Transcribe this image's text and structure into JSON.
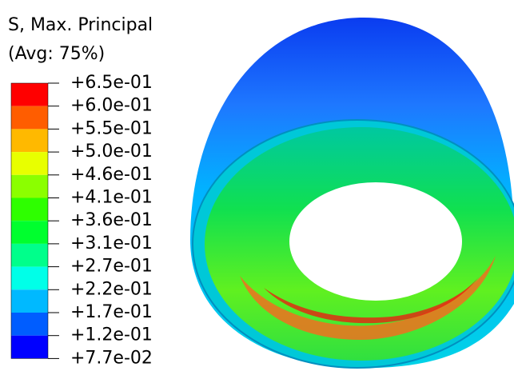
{
  "legend": {
    "title": "S, Max. Principal",
    "subtitle": "(Avg: 75%)",
    "labels": [
      "+6.5e-01",
      "+6.0e-01",
      "+5.5e-01",
      "+5.0e-01",
      "+4.6e-01",
      "+4.1e-01",
      "+3.6e-01",
      "+3.1e-01",
      "+2.7e-01",
      "+2.2e-01",
      "+1.7e-01",
      "+1.2e-01",
      "+7.7e-02"
    ],
    "colors": [
      "#ff0000",
      "#ff5d00",
      "#ffb900",
      "#e8ff00",
      "#8bff00",
      "#2eff00",
      "#00ff2e",
      "#00ff8b",
      "#00ffe8",
      "#00b9ff",
      "#005dff",
      "#0000ff"
    ]
  }
}
